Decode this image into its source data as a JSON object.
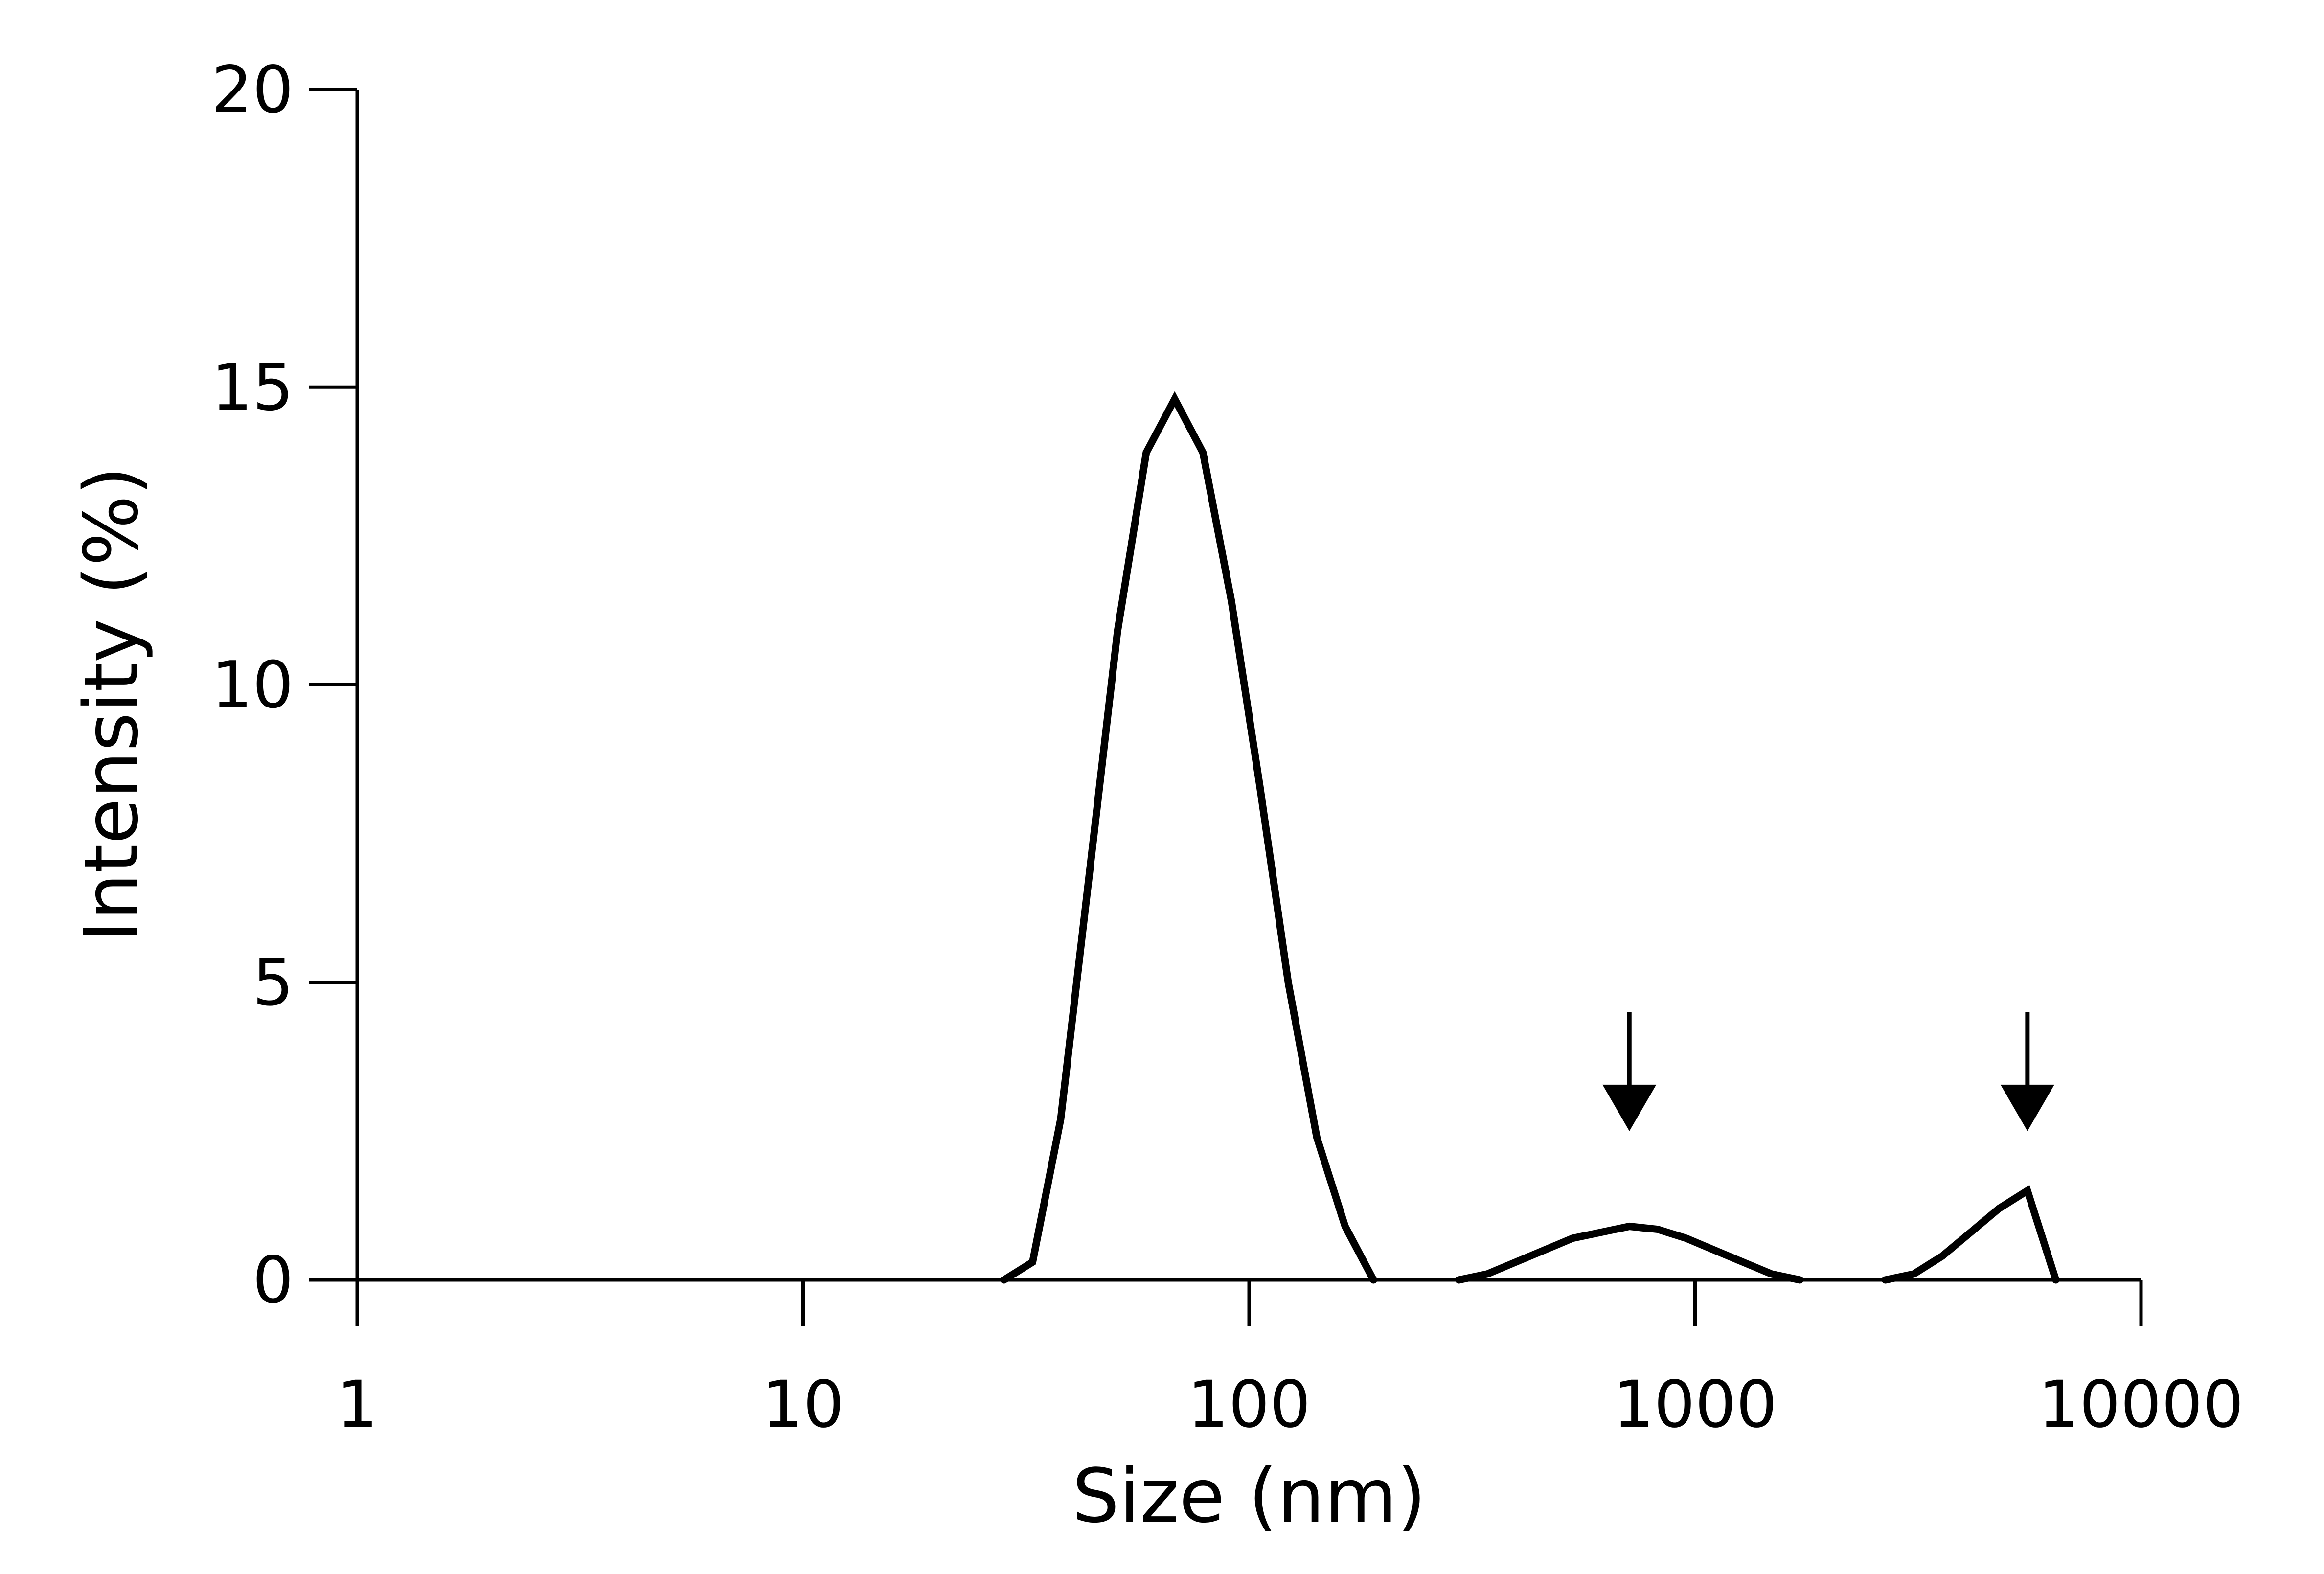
{
  "chart_data": {
    "type": "line",
    "title": "",
    "xlabel": "Size (nm)",
    "ylabel": "Intensity (%)",
    "xscale": "log",
    "xlim": [
      1,
      10000
    ],
    "ylim": [
      0,
      20
    ],
    "xticks": [
      1,
      10,
      100,
      1000,
      10000
    ],
    "xtick_labels": [
      "1",
      "10",
      "100",
      "1000",
      "10000"
    ],
    "yticks": [
      0,
      5,
      10,
      15,
      20
    ],
    "ytick_labels": [
      "0",
      "5",
      "10",
      "15",
      "20"
    ],
    "grid": false,
    "color": "#000000",
    "series": [
      {
        "segments": [
          {
            "x": [
              28.2,
              32.7,
              37.8,
              43.8,
              50.7,
              58.8,
              68.1,
              78.8,
              91.3,
              105.7,
              122.4,
              141.8,
              164.2,
              190.1
            ],
            "y": [
              0,
              0.3,
              2.7,
              6.8,
              10.9,
              13.9,
              14.8,
              13.9,
              11.4,
              8.3,
              5,
              2.4,
              0.9,
              0
            ]
          },
          {
            "x": [
              295.3,
              342,
              396.1,
              458.7,
              531.2,
              615.1,
              712.4,
              825,
              955.4,
              1106,
              1281,
              1484,
              1718
            ],
            "y": [
              0,
              0.1,
              0.3,
              0.5,
              0.7,
              0.8,
              0.9,
              0.85,
              0.7,
              0.5,
              0.3,
              0.1,
              0
            ]
          },
          {
            "x": [
              2671,
              3093,
              3582,
              4148,
              4804,
              5563,
              6442
            ],
            "y": [
              0,
              0.1,
              0.4,
              0.8,
              1.2,
              1.5,
              0
            ]
          }
        ]
      }
    ],
    "annotations": [
      {
        "type": "arrow",
        "x": 712.4,
        "y_top": 4.5,
        "y_tip": 2.5
      },
      {
        "type": "arrow",
        "x": 5563,
        "y_top": 4.5,
        "y_tip": 2.5
      }
    ]
  }
}
